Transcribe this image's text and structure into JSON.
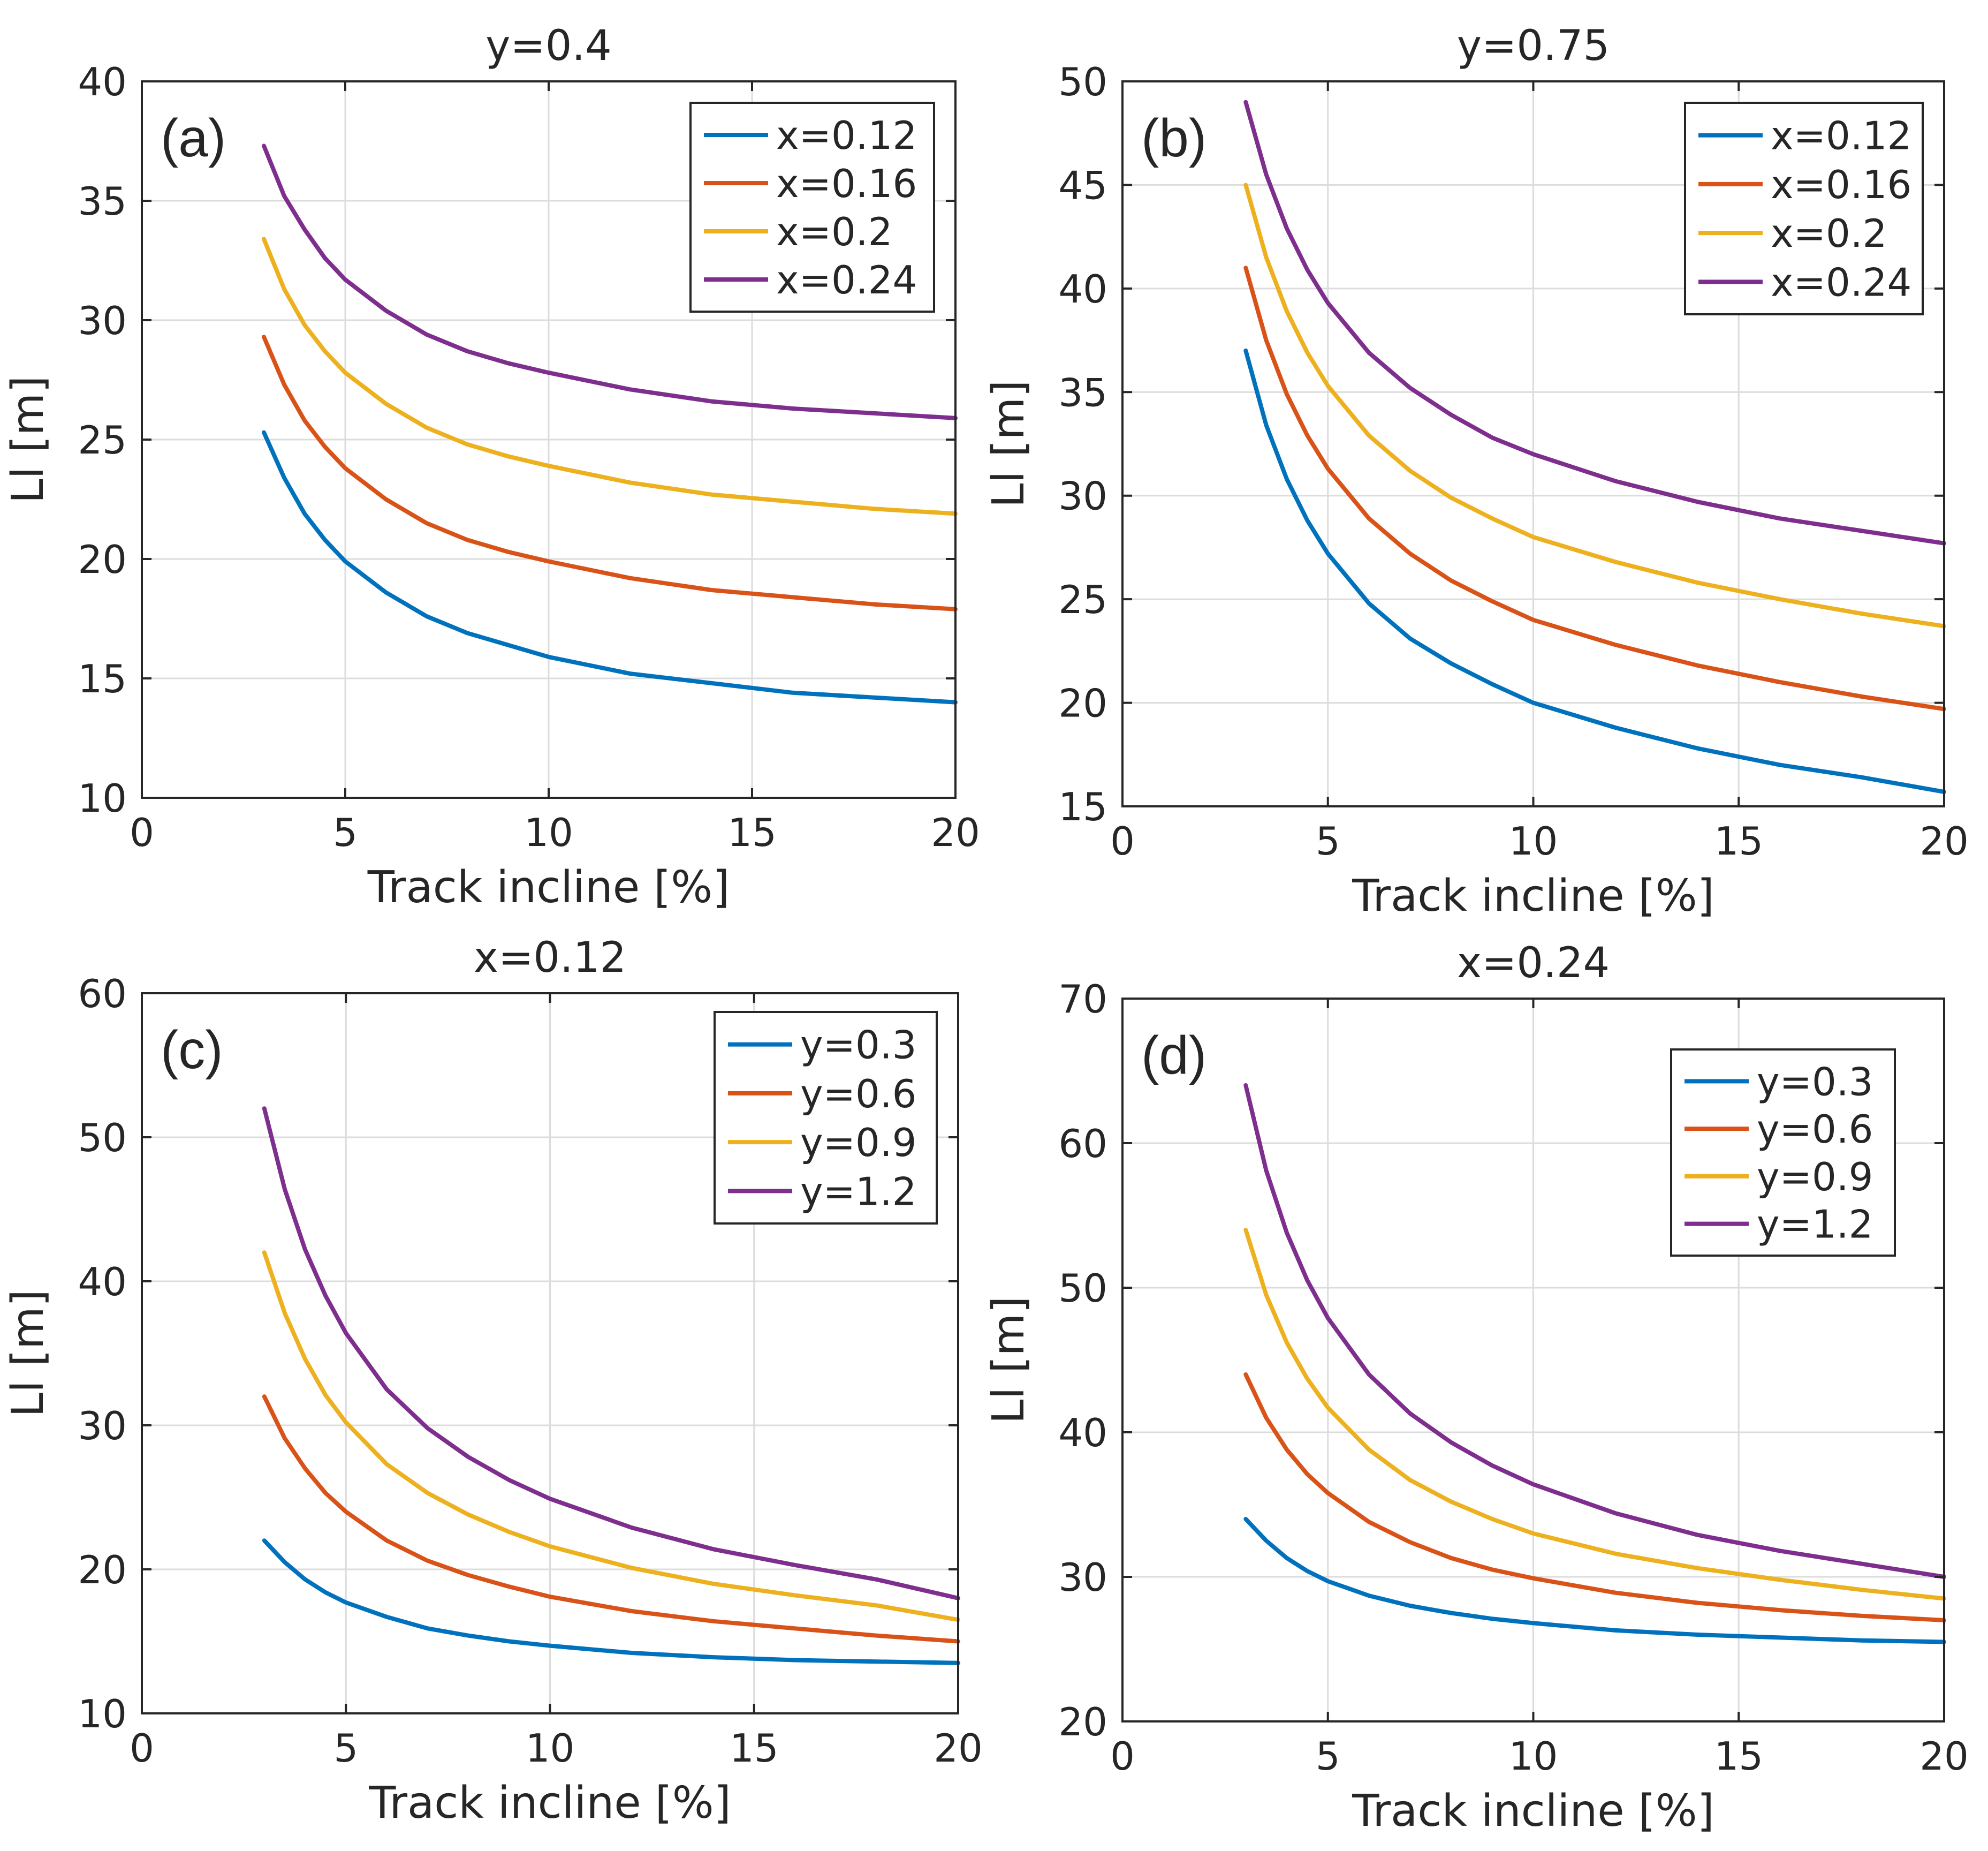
{
  "chart_data": [
    {
      "panel": "(a)",
      "type": "line",
      "title": "y=0.4",
      "xlabel": "Track incline [%]",
      "ylabel": "Ll [m]",
      "xlim": [
        0,
        20
      ],
      "ylim": [
        10,
        40
      ],
      "xticks": [
        0,
        5,
        10,
        15,
        20
      ],
      "yticks": [
        10,
        15,
        20,
        25,
        30,
        35,
        40
      ],
      "grid": true,
      "legend_position": "top-right",
      "x": [
        3,
        3.5,
        4,
        4.5,
        5,
        6,
        7,
        8,
        9,
        10,
        12,
        14,
        16,
        18,
        20
      ],
      "series": [
        {
          "name": "x=0.12",
          "color": "#0072BD",
          "values": [
            25.3,
            23.4,
            21.9,
            20.8,
            19.9,
            18.6,
            17.6,
            16.9,
            16.4,
            15.9,
            15.2,
            14.8,
            14.4,
            14.2,
            14.0
          ]
        },
        {
          "name": "x=0.16",
          "color": "#D95319",
          "values": [
            29.3,
            27.3,
            25.8,
            24.7,
            23.8,
            22.5,
            21.5,
            20.8,
            20.3,
            19.9,
            19.2,
            18.7,
            18.4,
            18.1,
            17.9
          ]
        },
        {
          "name": "x=0.2",
          "color": "#EDB120",
          "values": [
            33.4,
            31.3,
            29.8,
            28.7,
            27.8,
            26.5,
            25.5,
            24.8,
            24.3,
            23.9,
            23.2,
            22.7,
            22.4,
            22.1,
            21.9
          ]
        },
        {
          "name": "x=0.24",
          "color": "#7E2F8E",
          "values": [
            37.3,
            35.2,
            33.8,
            32.6,
            31.7,
            30.4,
            29.4,
            28.7,
            28.2,
            27.8,
            27.1,
            26.6,
            26.3,
            26.1,
            25.9
          ]
        }
      ]
    },
    {
      "panel": "(b)",
      "type": "line",
      "title": "y=0.75",
      "xlabel": "Track incline [%]",
      "ylabel": "Ll [m]",
      "xlim": [
        0,
        20
      ],
      "ylim": [
        15,
        50
      ],
      "xticks": [
        0,
        5,
        10,
        15,
        20
      ],
      "yticks": [
        15,
        20,
        25,
        30,
        35,
        40,
        45,
        50
      ],
      "grid": true,
      "legend_position": "top-right",
      "x": [
        3,
        3.5,
        4,
        4.5,
        5,
        6,
        7,
        8,
        9,
        10,
        12,
        14,
        16,
        18,
        20
      ],
      "series": [
        {
          "name": "x=0.12",
          "color": "#0072BD",
          "values": [
            37.0,
            33.4,
            30.8,
            28.8,
            27.2,
            24.8,
            23.1,
            21.9,
            20.9,
            20.0,
            18.8,
            17.8,
            17.0,
            16.4,
            15.7
          ]
        },
        {
          "name": "x=0.16",
          "color": "#D95319",
          "values": [
            41.0,
            37.5,
            34.9,
            32.9,
            31.3,
            28.9,
            27.2,
            25.9,
            24.9,
            24.0,
            22.8,
            21.8,
            21.0,
            20.3,
            19.7
          ]
        },
        {
          "name": "x=0.2",
          "color": "#EDB120",
          "values": [
            45.0,
            41.5,
            38.9,
            36.9,
            35.3,
            32.9,
            31.2,
            29.9,
            28.9,
            28.0,
            26.8,
            25.8,
            25.0,
            24.3,
            23.7
          ]
        },
        {
          "name": "x=0.24",
          "color": "#7E2F8E",
          "values": [
            49.0,
            45.5,
            42.9,
            40.9,
            39.3,
            36.9,
            35.2,
            33.9,
            32.8,
            32.0,
            30.7,
            29.7,
            28.9,
            28.3,
            27.7
          ]
        }
      ]
    },
    {
      "panel": "(c)",
      "type": "line",
      "title": "x=0.12",
      "xlabel": "Track incline [%]",
      "ylabel": "Ll [m]",
      "xlim": [
        0,
        20
      ],
      "ylim": [
        10,
        60
      ],
      "xticks": [
        0,
        5,
        10,
        15,
        20
      ],
      "yticks": [
        10,
        20,
        30,
        40,
        50,
        60
      ],
      "grid": true,
      "legend_position": "top-right",
      "x": [
        3,
        3.5,
        4,
        4.5,
        5,
        6,
        7,
        8,
        9,
        10,
        12,
        14,
        16,
        18,
        20
      ],
      "series": [
        {
          "name": "y=0.3",
          "color": "#0072BD",
          "values": [
            22.0,
            20.5,
            19.3,
            18.4,
            17.7,
            16.7,
            15.9,
            15.4,
            15.0,
            14.7,
            14.2,
            13.9,
            13.7,
            13.6,
            13.5
          ]
        },
        {
          "name": "y=0.6",
          "color": "#D95319",
          "values": [
            32.0,
            29.1,
            27.0,
            25.3,
            24.0,
            22.0,
            20.6,
            19.6,
            18.8,
            18.1,
            17.1,
            16.4,
            15.9,
            15.4,
            15.0
          ]
        },
        {
          "name": "y=0.9",
          "color": "#EDB120",
          "values": [
            42.0,
            37.8,
            34.6,
            32.1,
            30.2,
            27.3,
            25.3,
            23.8,
            22.6,
            21.6,
            20.1,
            19.0,
            18.2,
            17.5,
            16.5
          ]
        },
        {
          "name": "y=1.2",
          "color": "#7E2F8E",
          "values": [
            52.0,
            46.4,
            42.2,
            39.0,
            36.4,
            32.5,
            29.8,
            27.8,
            26.2,
            24.9,
            22.9,
            21.4,
            20.3,
            19.3,
            18.0
          ]
        }
      ]
    },
    {
      "panel": "(d)",
      "type": "line",
      "title": "x=0.24",
      "xlabel": "Track incline [%]",
      "ylabel": "Ll [m]",
      "xlim": [
        0,
        20
      ],
      "ylim": [
        20,
        70
      ],
      "xticks": [
        0,
        5,
        10,
        15,
        20
      ],
      "yticks": [
        20,
        30,
        40,
        50,
        60,
        70
      ],
      "grid": true,
      "legend_position": "top-right",
      "x": [
        3,
        3.5,
        4,
        4.5,
        5,
        6,
        7,
        8,
        9,
        10,
        12,
        14,
        16,
        18,
        20
      ],
      "series": [
        {
          "name": "y=0.3",
          "color": "#0072BD",
          "values": [
            34.0,
            32.5,
            31.3,
            30.4,
            29.7,
            28.7,
            28.0,
            27.5,
            27.1,
            26.8,
            26.3,
            26.0,
            25.8,
            25.6,
            25.5
          ]
        },
        {
          "name": "y=0.6",
          "color": "#D95319",
          "values": [
            44.0,
            41.0,
            38.8,
            37.1,
            35.8,
            33.8,
            32.4,
            31.3,
            30.5,
            29.9,
            28.9,
            28.2,
            27.7,
            27.3,
            27.0
          ]
        },
        {
          "name": "y=0.9",
          "color": "#EDB120",
          "values": [
            54.0,
            49.5,
            46.2,
            43.7,
            41.7,
            38.8,
            36.7,
            35.2,
            34.0,
            33.0,
            31.6,
            30.6,
            29.8,
            29.1,
            28.5
          ]
        },
        {
          "name": "y=1.2",
          "color": "#7E2F8E",
          "values": [
            64.0,
            58.1,
            53.8,
            50.5,
            47.9,
            44.0,
            41.3,
            39.3,
            37.7,
            36.4,
            34.4,
            32.9,
            31.8,
            30.9,
            30.0
          ]
        }
      ]
    }
  ]
}
